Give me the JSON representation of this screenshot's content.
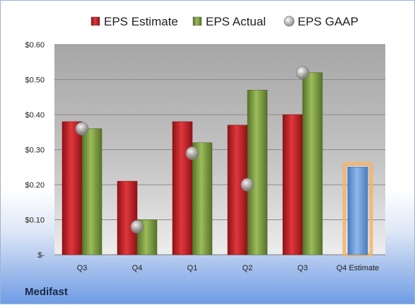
{
  "company": "Medifast",
  "chart_data": {
    "type": "bar",
    "categories": [
      "Q3",
      "Q4",
      "Q1",
      "Q2",
      "Q3",
      "Q4 Estimate"
    ],
    "y_ticks": [
      "$-",
      "$0.10",
      "$0.20",
      "$0.30",
      "$0.40",
      "$0.50",
      "$0.60"
    ],
    "ylim": [
      0,
      0.6
    ],
    "grid": true,
    "legend_position": "top",
    "series": [
      {
        "name": "EPS Estimate",
        "type": "bar",
        "color": "#c0282c",
        "values": [
          0.38,
          0.21,
          0.38,
          0.37,
          0.4,
          null
        ]
      },
      {
        "name": "EPS Actual",
        "type": "bar",
        "color": "#7a9a3a",
        "values": [
          0.36,
          0.1,
          0.32,
          0.47,
          0.52,
          null
        ]
      },
      {
        "name": "EPS GAAP",
        "type": "scatter",
        "color": "#9a9a9a",
        "values": [
          0.36,
          0.08,
          0.29,
          0.2,
          0.52,
          null
        ]
      },
      {
        "name": "",
        "type": "bar",
        "color": "#6f9fd8",
        "highlight": "#f3b46a",
        "values": [
          null,
          null,
          null,
          null,
          null,
          0.25
        ]
      }
    ]
  }
}
